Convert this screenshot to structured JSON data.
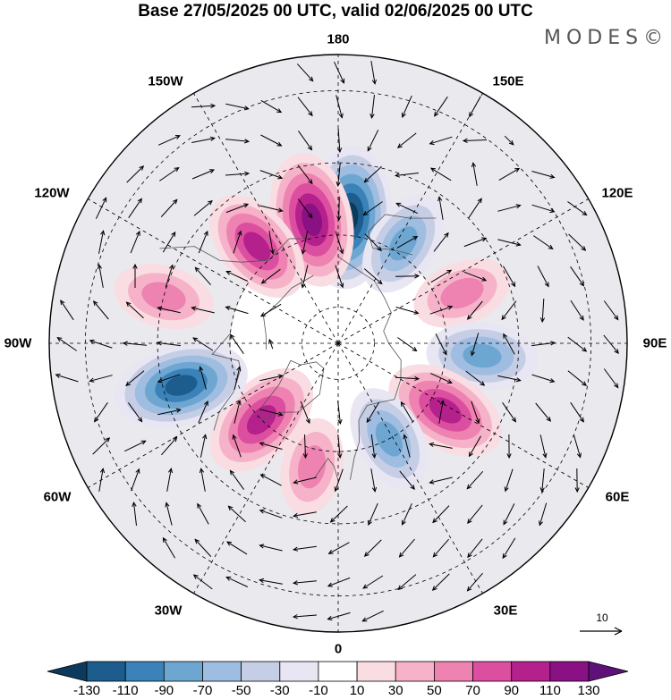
{
  "title": "Base 27/05/2025 00 UTC, valid 02/06/2025 00 UTC",
  "logo": "MODES©",
  "longitude_labels": {
    "lon_180": "180",
    "lon_150e": "150E",
    "lon_120e": "120E",
    "lon_90e": "90E",
    "lon_60e": "60E",
    "lon_30e": "30E",
    "lon_0": "0",
    "lon_30w": "30W",
    "lon_60w": "60W",
    "lon_90w": "90W",
    "lon_120w": "120W",
    "lon_150w": "150W"
  },
  "reference_vector_label": "10",
  "colorbar": {
    "colors": [
      "#0d3a5c",
      "#1c5d8e",
      "#3a82b8",
      "#6ea6d2",
      "#9ebde0",
      "#c6cee6",
      "#e8e6f2",
      "#ffffff",
      "#f9dde3",
      "#f5b2c8",
      "#ee82b1",
      "#dc4ea0",
      "#b5218c",
      "#8a1183",
      "#5e1178"
    ],
    "labels": [
      "-130",
      "-110",
      "-90",
      "-70",
      "-50",
      "-30",
      "-10",
      "10",
      "30",
      "50",
      "70",
      "90",
      "110",
      "130"
    ]
  },
  "anomaly_centers": [
    {
      "lon": 175,
      "lat": 55,
      "value": -135,
      "polarity": "negative"
    },
    {
      "lon": -168,
      "lat": 55,
      "value": 120,
      "polarity": "positive"
    },
    {
      "lon": 147,
      "lat": 57,
      "value": -70,
      "polarity": "negative"
    },
    {
      "lon": 112,
      "lat": 53,
      "value": 55,
      "polarity": "positive"
    },
    {
      "lon": 85,
      "lat": 50,
      "value": -75,
      "polarity": "negative"
    },
    {
      "lon": 58,
      "lat": 55,
      "value": 100,
      "polarity": "positive"
    },
    {
      "lon": 28,
      "lat": 60,
      "value": -70,
      "polarity": "negative"
    },
    {
      "lon": -12,
      "lat": 55,
      "value": 50,
      "polarity": "positive"
    },
    {
      "lon": -45,
      "lat": 60,
      "value": 100,
      "polarity": "positive"
    },
    {
      "lon": -75,
      "lat": 45,
      "value": -120,
      "polarity": "negative"
    },
    {
      "lon": -105,
      "lat": 40,
      "value": 55,
      "polarity": "positive"
    },
    {
      "lon": -140,
      "lat": 55,
      "value": 90,
      "polarity": "positive"
    }
  ]
}
